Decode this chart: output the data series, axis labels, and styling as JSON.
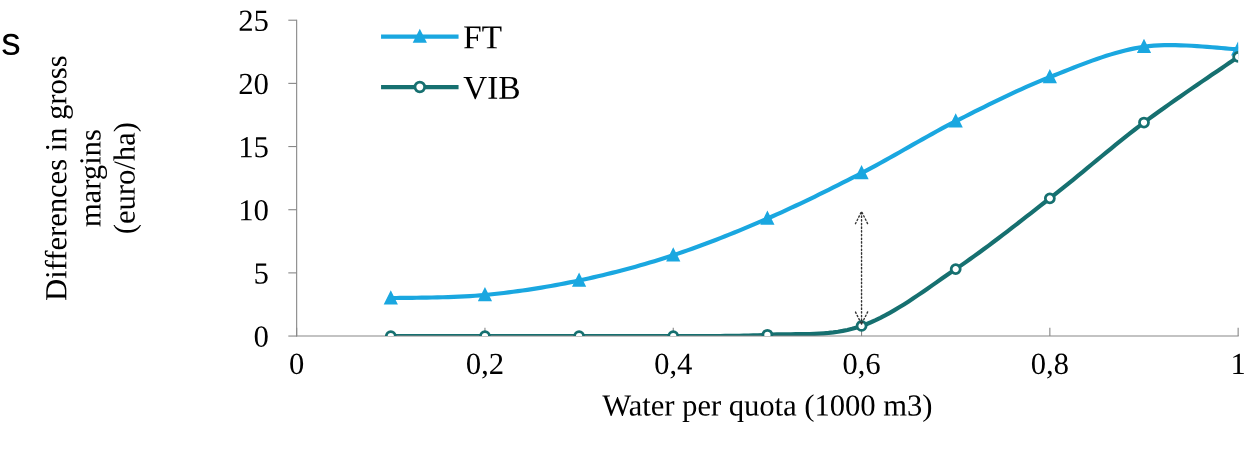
{
  "chart_data": {
    "type": "line",
    "xlabel": "Water per quota (1000 m3)",
    "ylabel": "Differences in gross\nmargins\n(euro/ha)",
    "x": [
      0.1,
      0.2,
      0.3,
      0.4,
      0.5,
      0.6,
      0.7,
      0.8,
      0.9,
      1.0
    ],
    "series": [
      {
        "name": "FT",
        "color": "#1aa7e0",
        "marker": "triangle",
        "values": [
          3.0,
          3.25,
          4.4,
          6.4,
          9.3,
          12.9,
          17.0,
          20.5,
          22.9,
          22.7
        ]
      },
      {
        "name": "VIB",
        "color": "#167070",
        "marker": "circle",
        "values": [
          0,
          0,
          0,
          0,
          0.1,
          0.8,
          5.3,
          10.9,
          16.9,
          22.1
        ]
      }
    ],
    "xlim": [
      0,
      1
    ],
    "xticks": [
      0,
      {
        "value": 0.2,
        "label": "0,2"
      },
      {
        "value": 0.4,
        "label": "0,4"
      },
      {
        "value": 0.6,
        "label": "0,6"
      },
      {
        "value": 0.8,
        "label": "0,8"
      },
      1
    ],
    "ylim": [
      0,
      25
    ],
    "yticks": [
      0,
      5,
      10,
      15,
      20,
      25
    ],
    "annotations": [
      "s"
    ],
    "grid": false,
    "legend": "top left",
    "line_style": "solid"
  }
}
